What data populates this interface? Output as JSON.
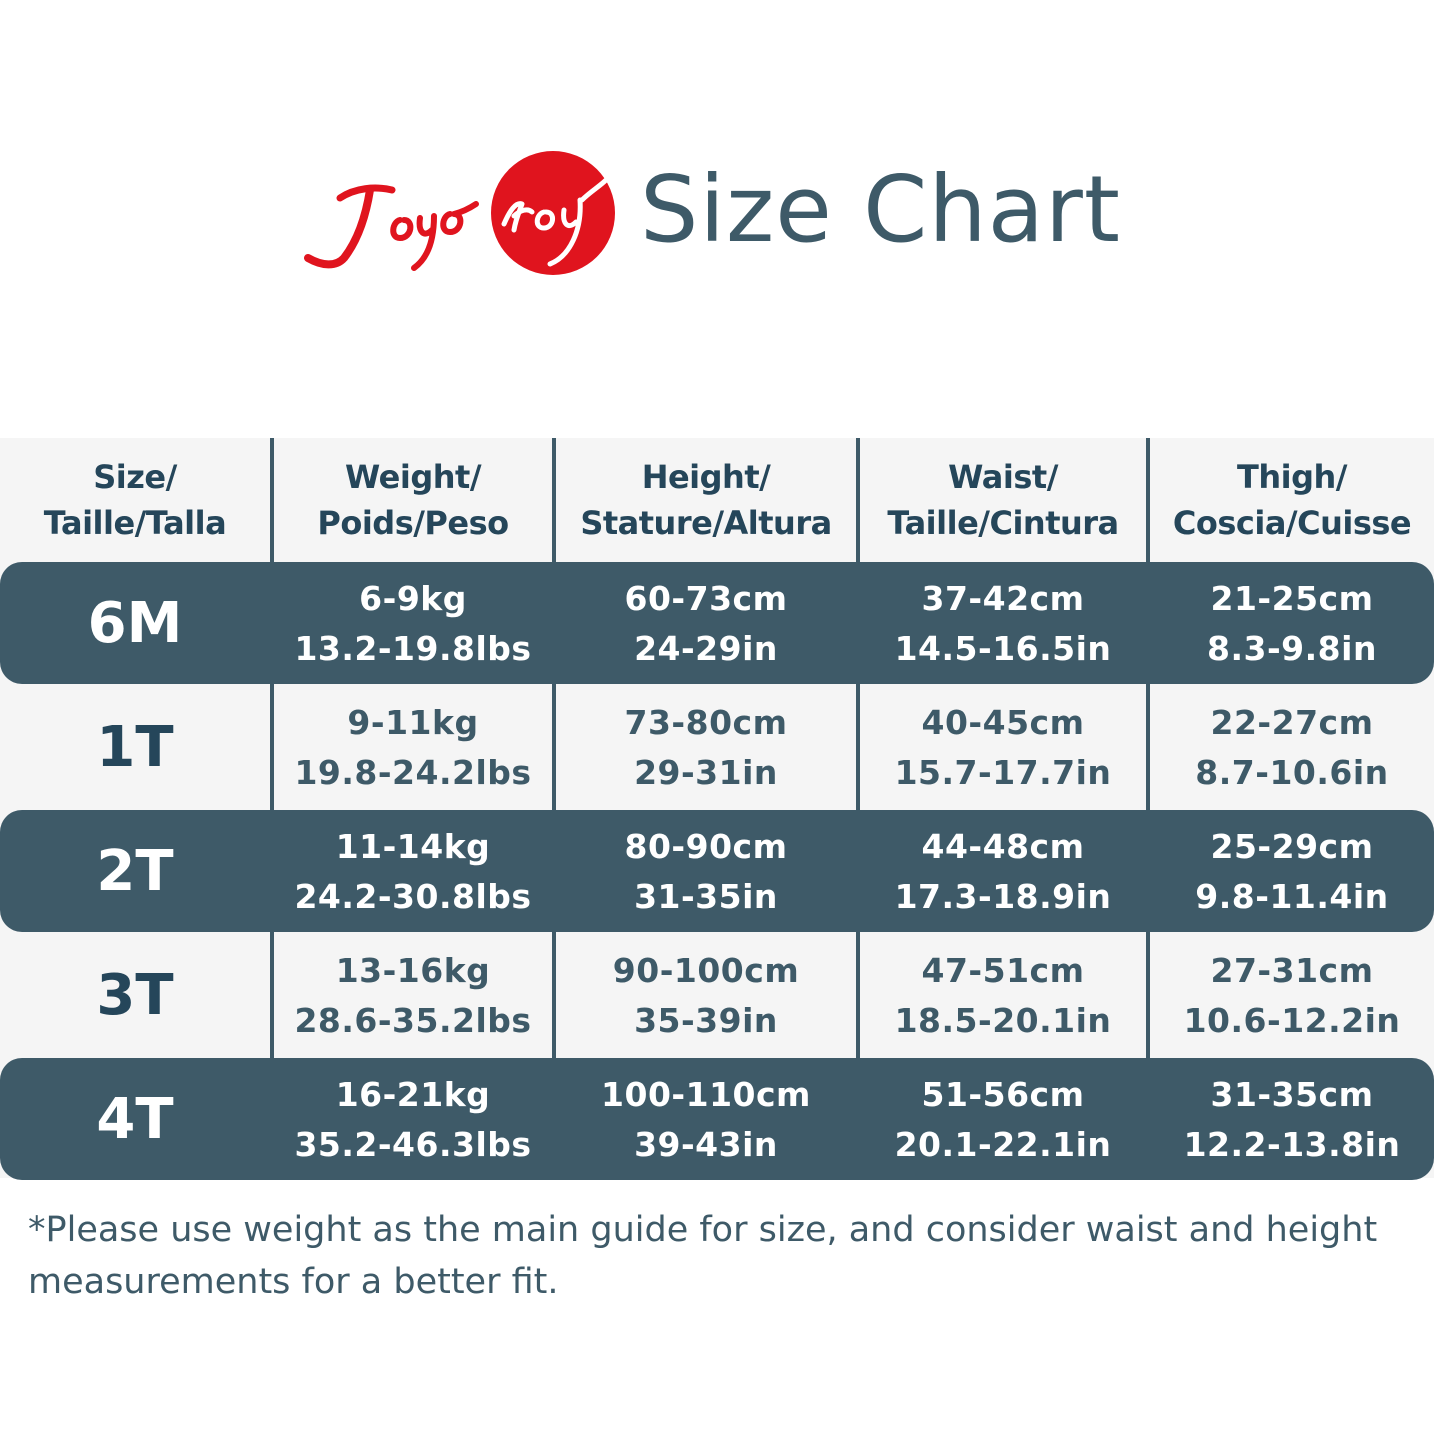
{
  "brand": {
    "logo_text": "Joyo roy",
    "logo_color": "#e0141e"
  },
  "title": "Size Chart",
  "colors": {
    "accent": "#3e5a68",
    "header_text": "#25465a",
    "light_row": "#f5f5f5",
    "white": "#ffffff"
  },
  "table": {
    "headers": [
      [
        "Size/",
        "Taille/Talla"
      ],
      [
        "Weight/",
        "Poids/Peso"
      ],
      [
        "Height/",
        "Stature/Altura"
      ],
      [
        "Waist/",
        "Taille/Cintura"
      ],
      [
        "Thigh/",
        "Coscia/Cuisse"
      ]
    ],
    "rows": [
      {
        "size": "6M",
        "style": "dark",
        "weight": [
          "6-9kg",
          "13.2-19.8lbs"
        ],
        "height": [
          "60-73cm",
          "24-29in"
        ],
        "waist": [
          "37-42cm",
          "14.5-16.5in"
        ],
        "thigh": [
          "21-25cm",
          "8.3-9.8in"
        ]
      },
      {
        "size": "1T",
        "style": "light",
        "weight": [
          "9-11kg",
          "19.8-24.2lbs"
        ],
        "height": [
          "73-80cm",
          "29-31in"
        ],
        "waist": [
          "40-45cm",
          "15.7-17.7in"
        ],
        "thigh": [
          "22-27cm",
          "8.7-10.6in"
        ]
      },
      {
        "size": "2T",
        "style": "dark",
        "weight": [
          "11-14kg",
          "24.2-30.8lbs"
        ],
        "height": [
          "80-90cm",
          "31-35in"
        ],
        "waist": [
          "44-48cm",
          "17.3-18.9in"
        ],
        "thigh": [
          "25-29cm",
          "9.8-11.4in"
        ]
      },
      {
        "size": "3T",
        "style": "light",
        "weight": [
          "13-16kg",
          "28.6-35.2lbs"
        ],
        "height": [
          "90-100cm",
          "35-39in"
        ],
        "waist": [
          "47-51cm",
          "18.5-20.1in"
        ],
        "thigh": [
          "27-31cm",
          "10.6-12.2in"
        ]
      },
      {
        "size": "4T",
        "style": "dark",
        "weight": [
          "16-21kg",
          "35.2-46.3lbs"
        ],
        "height": [
          "100-110cm",
          "39-43in"
        ],
        "waist": [
          "51-56cm",
          "20.1-22.1in"
        ],
        "thigh": [
          "31-35cm",
          "12.2-13.8in"
        ]
      }
    ]
  },
  "note": "*Please use weight as the main guide for size, and consider waist and height measurements for a better fit."
}
